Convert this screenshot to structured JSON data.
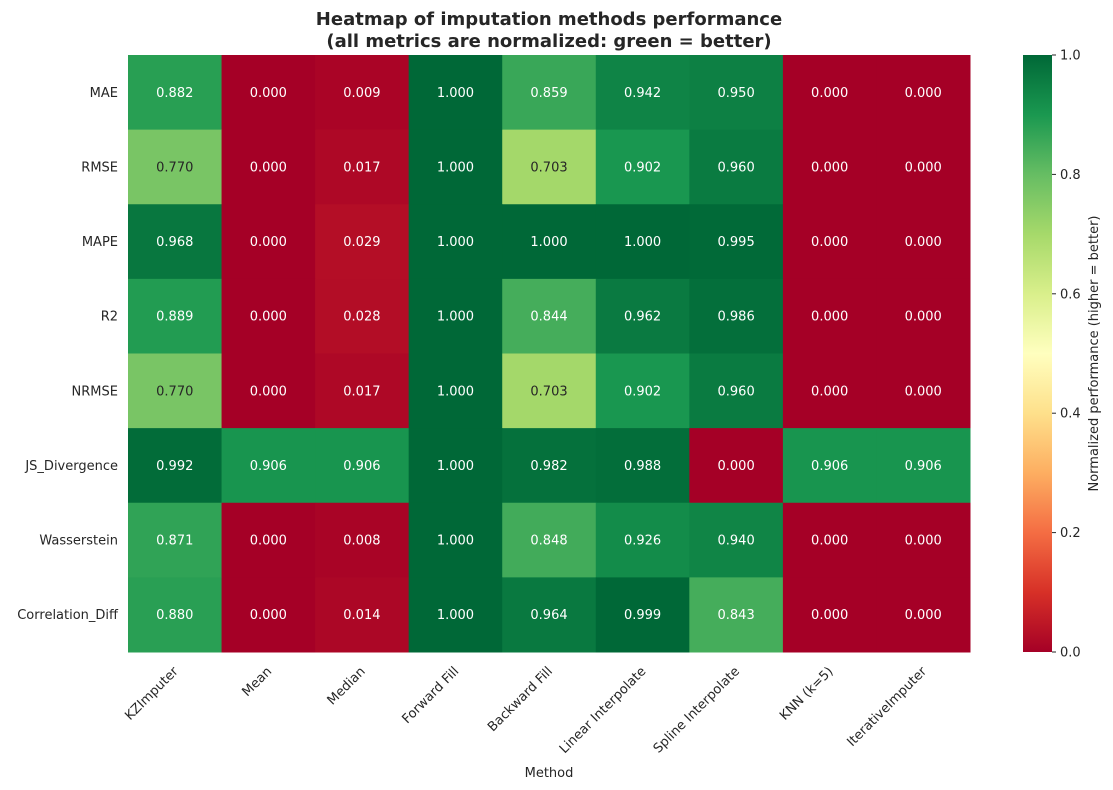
{
  "chart_data": {
    "type": "heatmap",
    "title_line1": "Heatmap of imputation methods performance",
    "title_line2": "(all metrics are normalized: green = better)",
    "xlabel": "Method",
    "ylabel": "",
    "columns": [
      "KZImputer",
      "Mean",
      "Median",
      "Forward Fill",
      "Backward Fill",
      "Linear Interpolate",
      "Spline Interpolate",
      "KNN (k=5)",
      "IterativeImputer"
    ],
    "rows": [
      "MAE",
      "RMSE",
      "MAPE",
      "R2",
      "NRMSE",
      "JS_Divergence",
      "Wasserstein",
      "Correlation_Diff"
    ],
    "values": [
      [
        0.882,
        0.0,
        0.009,
        1.0,
        0.859,
        0.942,
        0.95,
        0.0,
        0.0
      ],
      [
        0.77,
        0.0,
        0.017,
        1.0,
        0.703,
        0.902,
        0.96,
        0.0,
        0.0
      ],
      [
        0.968,
        0.0,
        0.029,
        1.0,
        1.0,
        1.0,
        0.995,
        0.0,
        0.0
      ],
      [
        0.889,
        0.0,
        0.028,
        1.0,
        0.844,
        0.962,
        0.986,
        0.0,
        0.0
      ],
      [
        0.77,
        0.0,
        0.017,
        1.0,
        0.703,
        0.902,
        0.96,
        0.0,
        0.0
      ],
      [
        0.992,
        0.906,
        0.906,
        1.0,
        0.982,
        0.988,
        0.0,
        0.906,
        0.906
      ],
      [
        0.871,
        0.0,
        0.008,
        1.0,
        0.848,
        0.926,
        0.94,
        0.0,
        0.0
      ],
      [
        0.88,
        0.0,
        0.014,
        1.0,
        0.964,
        0.999,
        0.843,
        0.0,
        0.0
      ]
    ],
    "colormap": "RdYlGn",
    "colorbar": {
      "label": "Normalized performance (higher = better)",
      "ticks": [
        "0.0",
        "0.2",
        "0.4",
        "0.6",
        "0.8",
        "1.0"
      ],
      "range": [
        0,
        1
      ]
    },
    "colors": {
      "low": "#a50026",
      "mid": "#ffffbf",
      "high": "#006837",
      "text_light": "#ffffff",
      "text_dark": "#262626",
      "axis_text": "#262626"
    }
  }
}
